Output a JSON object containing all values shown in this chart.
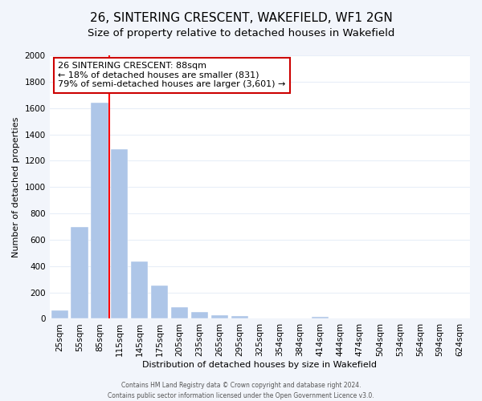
{
  "title": "26, SINTERING CRESCENT, WAKEFIELD, WF1 2GN",
  "subtitle": "Size of property relative to detached houses in Wakefield",
  "xlabel": "Distribution of detached houses by size in Wakefield",
  "ylabel": "Number of detached properties",
  "bar_labels": [
    "25sqm",
    "55sqm",
    "85sqm",
    "115sqm",
    "145sqm",
    "175sqm",
    "205sqm",
    "235sqm",
    "265sqm",
    "295sqm",
    "325sqm",
    "354sqm",
    "384sqm",
    "414sqm",
    "444sqm",
    "474sqm",
    "504sqm",
    "534sqm",
    "564sqm",
    "594sqm",
    "624sqm"
  ],
  "bar_values": [
    65,
    695,
    1640,
    1285,
    435,
    255,
    90,
    50,
    30,
    20,
    0,
    0,
    0,
    15,
    0,
    0,
    0,
    0,
    0,
    0,
    0
  ],
  "bar_color": "#aec6e8",
  "redline_index": 2,
  "annotation_title": "26 SINTERING CRESCENT: 88sqm",
  "annotation_line1": "← 18% of detached houses are smaller (831)",
  "annotation_line2": "79% of semi-detached houses are larger (3,601) →",
  "box_edgecolor": "#cc0000",
  "ylim": [
    0,
    2000
  ],
  "yticks": [
    0,
    200,
    400,
    600,
    800,
    1000,
    1200,
    1400,
    1600,
    1800,
    2000
  ],
  "footer1": "Contains HM Land Registry data © Crown copyright and database right 2024.",
  "footer2": "Contains public sector information licensed under the Open Government Licence v3.0.",
  "bg_color": "#f2f5fb",
  "plot_bg": "#ffffff",
  "grid_color": "#e8eef8",
  "title_fontsize": 11,
  "subtitle_fontsize": 9.5,
  "axis_label_fontsize": 8,
  "tick_fontsize": 7.5
}
